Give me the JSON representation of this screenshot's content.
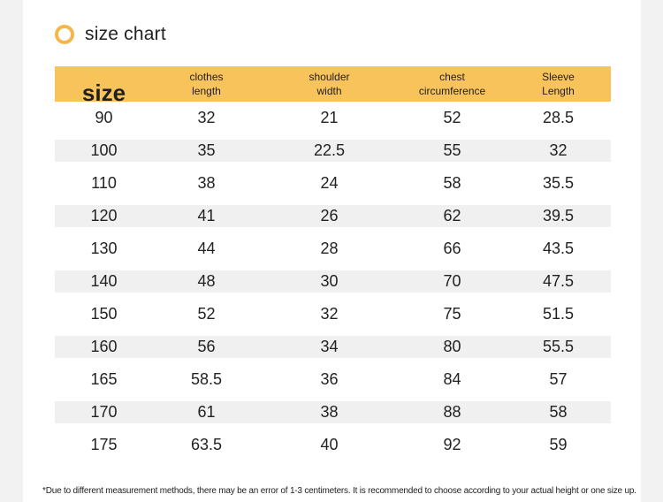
{
  "heading": {
    "title": "size chart"
  },
  "table": {
    "headers": [
      {
        "line1": "size",
        "line2": ""
      },
      {
        "line1": "clothes",
        "line2": "length"
      },
      {
        "line1": "shoulder",
        "line2": "width"
      },
      {
        "line1": "chest",
        "line2": "circumference"
      },
      {
        "line1": "Sleeve",
        "line2": "Length"
      }
    ],
    "rows": [
      [
        "90",
        "32",
        "21",
        "52",
        "28.5"
      ],
      [
        "100",
        "35",
        "22.5",
        "55",
        "32"
      ],
      [
        "110",
        "38",
        "24",
        "58",
        "35.5"
      ],
      [
        "120",
        "41",
        "26",
        "62",
        "39.5"
      ],
      [
        "130",
        "44",
        "28",
        "66",
        "43.5"
      ],
      [
        "140",
        "48",
        "30",
        "70",
        "47.5"
      ],
      [
        "150",
        "52",
        "32",
        "75",
        "51.5"
      ],
      [
        "160",
        "56",
        "34",
        "80",
        "55.5"
      ],
      [
        "165",
        "58.5",
        "36",
        "84",
        "57"
      ],
      [
        "170",
        "61",
        "38",
        "88",
        "58"
      ],
      [
        "175",
        "63.5",
        "40",
        "92",
        "59"
      ]
    ]
  },
  "footnote": "*Due to different measurement methods, there may be an error of 1-3 centimeters. It is recommended to choose according to your actual height or one size up.",
  "colors": {
    "accent": "#f8c35b",
    "ring": "#f4b84a",
    "stripe": "#f0f0f0"
  }
}
